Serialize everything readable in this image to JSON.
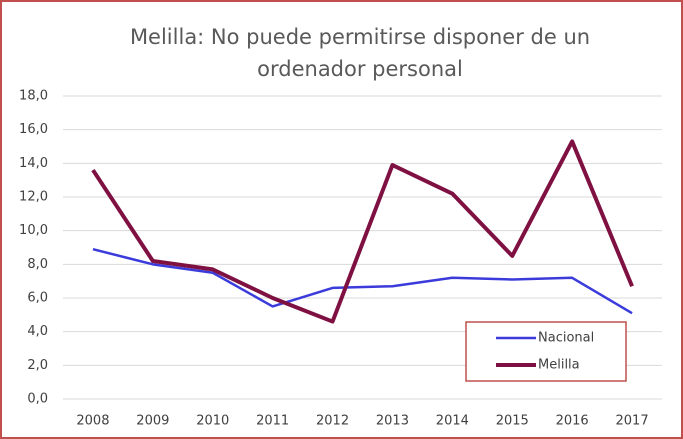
{
  "chart_data": {
    "type": "line",
    "title": [
      "Melilla:     No puede permitirse disponer de un",
      "ordenador personal"
    ],
    "categories": [
      "2008",
      "2009",
      "2010",
      "2011",
      "2012",
      "2013",
      "2014",
      "2015",
      "2016",
      "2017"
    ],
    "series": [
      {
        "name": "Nacional",
        "color": "#3b3bdc",
        "values": [
          8.9,
          8.0,
          7.5,
          5.5,
          6.6,
          6.7,
          7.2,
          7.1,
          7.2,
          5.1
        ]
      },
      {
        "name": "Melilla",
        "color": "#7f1142",
        "values": [
          13.6,
          8.2,
          7.7,
          6.0,
          4.6,
          13.9,
          12.2,
          8.5,
          15.3,
          6.7
        ]
      }
    ],
    "ylim": [
      0,
      18
    ],
    "yticks": [
      {
        "value": 0,
        "label": "0,0"
      },
      {
        "value": 2,
        "label": "2,0"
      },
      {
        "value": 4,
        "label": "4,0"
      },
      {
        "value": 6,
        "label": "6,0"
      },
      {
        "value": 8,
        "label": "8,0"
      },
      {
        "value": 10,
        "label": "10,0"
      },
      {
        "value": 12,
        "label": "12,0"
      },
      {
        "value": 14,
        "label": "14,0"
      },
      {
        "value": 16,
        "label": "16,0"
      },
      {
        "value": 18,
        "label": "18,0"
      }
    ],
    "grid": true,
    "legend": "lower right"
  }
}
